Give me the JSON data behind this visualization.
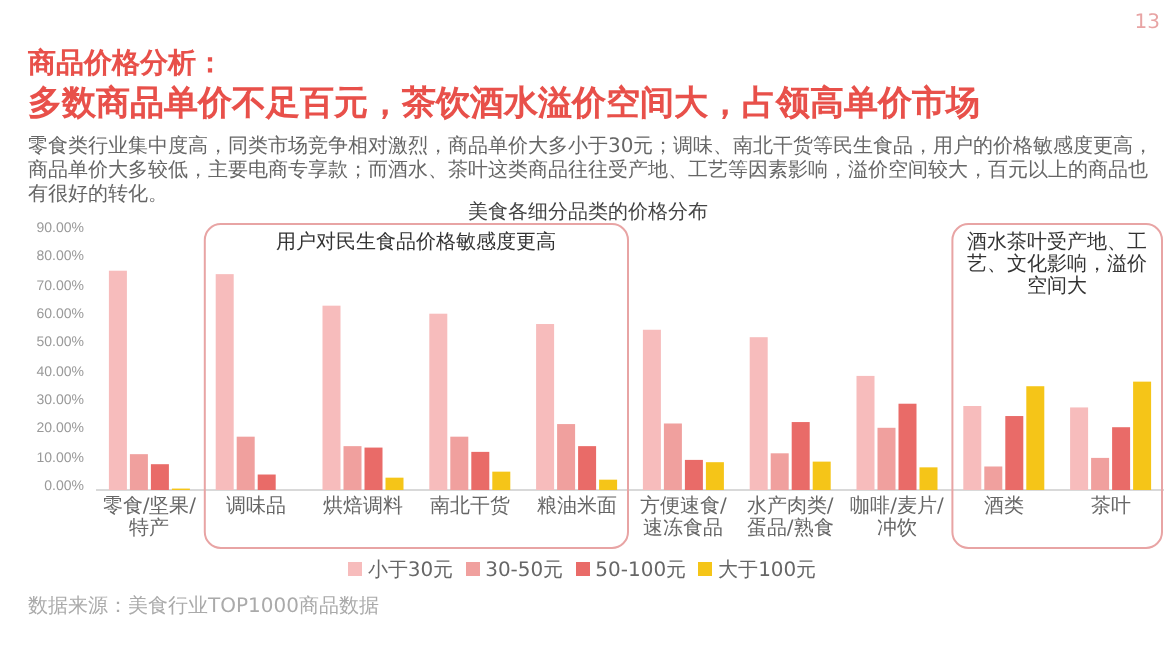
{
  "chart_data": {
    "type": "bar",
    "title": "美食各细分品类的价格分布",
    "categories": [
      "零食/坚果/特产",
      "调味品",
      "烘焙调料",
      "南北干货",
      "粮油米面",
      "方便速食/速冻食品",
      "水产肉类/蛋品/熟食",
      "咖啡/麦片/冲饮",
      "酒类",
      "茶叶"
    ],
    "series": [
      {
        "name": "小于30元",
        "color": "#f7bcbc",
        "values": [
          76.5,
          75.3,
          64.3,
          61.5,
          57.9,
          55.9,
          53.3,
          39.8,
          29.3,
          28.8
        ]
      },
      {
        "name": "30-50元",
        "color": "#f0a09e",
        "values": [
          12.5,
          18.6,
          15.3,
          18.6,
          23,
          23.2,
          12.8,
          21.7,
          8.2,
          11.2
        ]
      },
      {
        "name": "50-100元",
        "color": "#e96b68",
        "values": [
          9,
          5.4,
          14.8,
          13.3,
          15.3,
          10.5,
          23.7,
          30.1,
          25.8,
          21.9
        ]
      },
      {
        "name": "大于100元",
        "color": "#f5c518",
        "values": [
          0.5,
          0,
          4.3,
          6.4,
          3.6,
          9.7,
          9.9,
          7.9,
          36.2,
          37.8
        ]
      }
    ],
    "ylim": [
      0,
      90
    ],
    "yticks": [
      {
        "value": 0,
        "label": "0.00%"
      },
      {
        "value": 10,
        "label": "10.00%"
      },
      {
        "value": 20,
        "label": "20.00%"
      },
      {
        "value": 30,
        "label": "30.00%"
      },
      {
        "value": 40,
        "label": "40.00%"
      },
      {
        "value": 50,
        "label": "50.00%"
      },
      {
        "value": 60,
        "label": "60.00%"
      },
      {
        "value": 70,
        "label": "70.00%"
      },
      {
        "value": 80,
        "label": "80.00%"
      },
      {
        "value": 90,
        "label": "90.00%"
      }
    ],
    "legend": "bottom",
    "annotations": [
      "13",
      "商品价格分析：",
      "多数商品单价不足百元，茶饮酒水溢价空间大，占领高单价市场",
      "零食类行业集中度高，同类市场竞争相对激烈，商品单价大多小于30元；调味、南北干货等民生食品，用户的价格敏感度更高，商品单价大多较低，主要电商专享款；而酒水、茶叶这类商品往往受产地、工艺等因素影响，溢价空间较大，百元以上的商品也有很好的转化。",
      "数据来源：美食行业TOP1000商品数据",
      "用户对民生食品价格敏感度更高",
      "酒水茶叶受产地、工艺、文化影响，溢价空间大"
    ]
  }
}
